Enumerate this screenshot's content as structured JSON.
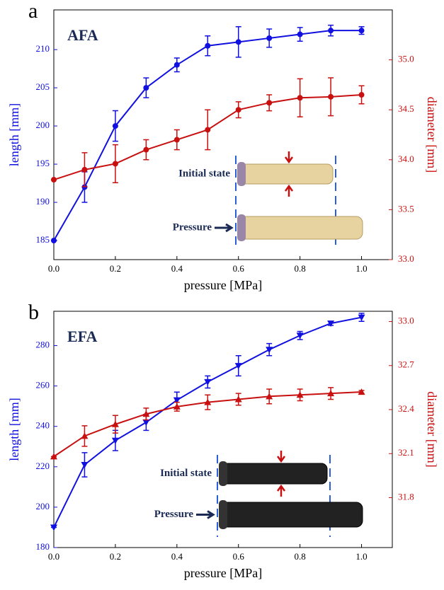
{
  "chart_data": [
    {
      "type": "line",
      "panel_label": "a",
      "title": "AFA",
      "inset_labels": [
        "Initial state",
        "Pressure"
      ],
      "xlabel": "pressure [MPa]",
      "ylabel": "length [mm]",
      "y2label": "diameter [mm]",
      "x": [
        0,
        0.1,
        0.2,
        0.3,
        0.4,
        0.5,
        0.6,
        0.7,
        0.8,
        0.9,
        1.0
      ],
      "xlim": [
        0,
        1.1
      ],
      "xticks": [
        {
          "value": 0,
          "label": "0.0"
        },
        0.2,
        0.4,
        0.6,
        0.8,
        {
          "value": 1,
          "label": "1.0"
        }
      ],
      "ylim": [
        182.5,
        215.2
      ],
      "yticks": [
        185,
        190,
        195,
        200,
        205,
        210
      ],
      "y2lim": [
        33.0,
        35.5
      ],
      "y2ticks": [
        {
          "value": 33,
          "label": "33.0"
        },
        33.5,
        {
          "value": 34,
          "label": "34.0"
        },
        34.5,
        {
          "value": 35,
          "label": "35.0"
        }
      ],
      "series": [
        {
          "color": "#1010e0",
          "marker": "circle",
          "axis": "y",
          "values": [
            185,
            192,
            200,
            205,
            208,
            210.5,
            211,
            211.5,
            212,
            212.5,
            212.5
          ],
          "errors": [
            0,
            2,
            2,
            1.3,
            0.9,
            1.3,
            2,
            1.2,
            0.9,
            0.7,
            0.5
          ]
        },
        {
          "color": "#c81010",
          "marker": "circle",
          "axis": "y2",
          "values": [
            33.8,
            33.9,
            33.96,
            34.1,
            34.2,
            34.3,
            34.5,
            34.57,
            34.62,
            34.63,
            34.65
          ],
          "errors": [
            0,
            0.17,
            0.19,
            0.1,
            0.1,
            0.2,
            0.08,
            0.08,
            0.19,
            0.19,
            0.09
          ]
        }
      ]
    },
    {
      "type": "line",
      "panel_label": "b",
      "title": "EFA",
      "inset_labels": [
        "Initial state",
        "Pressure"
      ],
      "xlabel": "pressure [MPa]",
      "ylabel": "length [mm]",
      "y2label": "diameter [mm]",
      "x": [
        0,
        0.1,
        0.2,
        0.3,
        0.4,
        0.5,
        0.6,
        0.7,
        0.8,
        0.9,
        1.0
      ],
      "xlim": [
        0,
        1.1
      ],
      "xticks": [
        {
          "value": 0,
          "label": "0.0"
        },
        0.2,
        0.4,
        0.6,
        0.8,
        {
          "value": 1,
          "label": "1.0"
        }
      ],
      "ylim": [
        180,
        297
      ],
      "yticks": [
        180,
        200,
        220,
        240,
        260,
        280
      ],
      "y2lim": [
        31.46,
        33.07
      ],
      "y2ticks": [
        31.8,
        32.1,
        32.4,
        32.7,
        {
          "value": 33,
          "label": "33.0"
        }
      ],
      "series": [
        {
          "color": "#1010e0",
          "marker": "triangle-down",
          "axis": "y",
          "values": [
            190,
            221,
            233,
            242,
            253,
            262,
            270,
            278,
            285,
            291,
            294
          ],
          "errors": [
            0,
            6,
            5,
            4,
            4,
            3,
            5,
            3,
            2,
            1,
            2
          ]
        },
        {
          "color": "#c81010",
          "marker": "triangle-up",
          "axis": "y2",
          "values": [
            32.08,
            32.22,
            32.3,
            32.37,
            32.42,
            32.45,
            32.47,
            32.49,
            32.5,
            32.51,
            32.52
          ],
          "errors": [
            0,
            0.07,
            0.06,
            0.04,
            0.03,
            0.05,
            0.04,
            0.05,
            0.04,
            0.04,
            0.01
          ]
        }
      ]
    }
  ]
}
